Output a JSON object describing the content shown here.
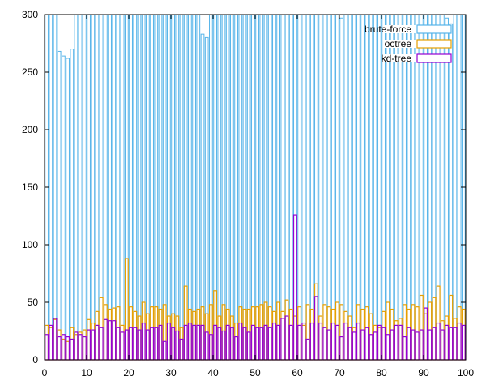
{
  "chart_data": {
    "type": "bar",
    "title": "",
    "xlabel": "",
    "ylabel": "",
    "xlim": [
      0,
      100
    ],
    "ylim": [
      0,
      300
    ],
    "x_ticks": [
      "0",
      "10",
      "20",
      "30",
      "40",
      "50",
      "60",
      "70",
      "80",
      "90",
      "100"
    ],
    "y_ticks": [
      "0",
      "50",
      "100",
      "150",
      "200",
      "250",
      "300"
    ],
    "grid": false,
    "legend_position": "top-right",
    "bar_style": "outlined, overlapping",
    "categories": [
      0,
      1,
      2,
      3,
      4,
      5,
      6,
      7,
      8,
      9,
      10,
      11,
      12,
      13,
      14,
      15,
      16,
      17,
      18,
      19,
      20,
      21,
      22,
      23,
      24,
      25,
      26,
      27,
      28,
      29,
      30,
      31,
      32,
      33,
      34,
      35,
      36,
      37,
      38,
      39,
      40,
      41,
      42,
      43,
      44,
      45,
      46,
      47,
      48,
      49,
      50,
      51,
      52,
      53,
      54,
      55,
      56,
      57,
      58,
      59,
      60,
      61,
      62,
      63,
      64,
      65,
      66,
      67,
      68,
      69,
      70,
      71,
      72,
      73,
      74,
      75,
      76,
      77,
      78,
      79,
      80,
      81,
      82,
      83,
      84,
      85,
      86,
      87,
      88,
      89,
      90,
      91,
      92,
      93,
      94,
      95,
      96,
      97,
      98,
      99
    ],
    "series": [
      {
        "name": "brute-force",
        "color": "#56b4e9",
        "values": [
          300,
          300,
          300,
          268,
          264,
          262,
          270,
          300,
          300,
          300,
          300,
          300,
          300,
          300,
          300,
          300,
          300,
          300,
          300,
          300,
          300,
          300,
          300,
          300,
          300,
          300,
          300,
          300,
          300,
          300,
          300,
          300,
          300,
          300,
          300,
          300,
          300,
          283,
          280,
          300,
          300,
          300,
          300,
          300,
          300,
          300,
          300,
          300,
          300,
          300,
          300,
          300,
          300,
          300,
          300,
          300,
          300,
          300,
          300,
          300,
          300,
          300,
          300,
          300,
          300,
          300,
          300,
          300,
          300,
          300,
          297,
          300,
          300,
          300,
          300,
          300,
          300,
          300,
          300,
          300,
          300,
          300,
          300,
          300,
          300,
          300,
          300,
          300,
          300,
          300,
          300,
          300,
          300,
          300,
          300,
          297,
          292,
          300,
          300,
          300
        ]
      },
      {
        "name": "octree",
        "color": "#e69f00",
        "values": [
          30,
          28,
          35,
          26,
          18,
          16,
          28,
          22,
          24,
          26,
          35,
          32,
          42,
          54,
          48,
          44,
          45,
          46,
          30,
          88,
          46,
          42,
          38,
          50,
          40,
          46,
          46,
          44,
          48,
          38,
          40,
          38,
          28,
          64,
          44,
          42,
          44,
          46,
          40,
          48,
          60,
          38,
          48,
          44,
          38,
          32,
          46,
          44,
          44,
          46,
          46,
          48,
          50,
          46,
          42,
          50,
          42,
          52,
          44,
          38,
          46,
          30,
          48,
          44,
          66,
          38,
          48,
          46,
          44,
          50,
          48,
          42,
          38,
          28,
          48,
          44,
          46,
          40,
          30,
          28,
          42,
          50,
          44,
          34,
          36,
          48,
          44,
          48,
          46,
          56,
          40,
          50,
          54,
          64,
          34,
          38,
          56,
          36,
          46,
          44
        ]
      },
      {
        "name": "kd-tree",
        "color": "#9400d3",
        "values": [
          22,
          30,
          36,
          20,
          22,
          20,
          18,
          24,
          22,
          20,
          26,
          26,
          30,
          28,
          35,
          34,
          34,
          28,
          24,
          26,
          28,
          28,
          26,
          32,
          26,
          28,
          28,
          30,
          16,
          32,
          28,
          25,
          18,
          30,
          32,
          30,
          30,
          30,
          24,
          22,
          30,
          28,
          25,
          30,
          28,
          20,
          32,
          28,
          24,
          30,
          28,
          28,
          30,
          28,
          32,
          30,
          36,
          38,
          30,
          126,
          30,
          32,
          18,
          32,
          55,
          32,
          28,
          26,
          32,
          30,
          20,
          32,
          28,
          24,
          32,
          26,
          28,
          22,
          24,
          30,
          28,
          22,
          26,
          30,
          30,
          20,
          28,
          26,
          24,
          26,
          45,
          26,
          28,
          32,
          26,
          30,
          28,
          28,
          32,
          30
        ]
      }
    ]
  }
}
